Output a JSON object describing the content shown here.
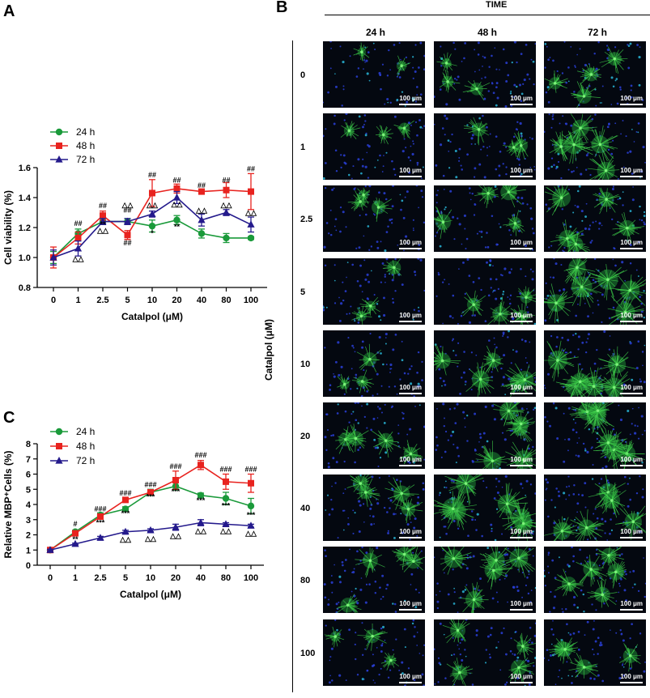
{
  "panels": {
    "a": "A",
    "b": "B",
    "c": "C"
  },
  "chart_data": [
    {
      "type": "line",
      "panel": "A",
      "xlabel": "Catalpol (μM)",
      "ylabel": "Cell viability (%)",
      "categories": [
        "0",
        "1",
        "2.5",
        "5",
        "10",
        "20",
        "40",
        "80",
        "100"
      ],
      "ylim": [
        0.8,
        1.6
      ],
      "yticks": [
        "0.8",
        "1.0",
        "1.2",
        "1.4",
        "1.6"
      ],
      "legend_position": "upper-left",
      "series": [
        {
          "name": "24 h",
          "color": "#1a9a3a",
          "marker": "circle",
          "values": [
            1.0,
            1.16,
            1.24,
            1.24,
            1.21,
            1.25,
            1.16,
            1.13,
            1.13
          ],
          "errors": [
            0.04,
            0.03,
            0.02,
            0.02,
            0.04,
            0.03,
            0.03,
            0.03,
            0.01
          ]
        },
        {
          "name": "48 h",
          "color": "#e8231f",
          "marker": "square",
          "values": [
            1.0,
            1.13,
            1.28,
            1.15,
            1.43,
            1.46,
            1.44,
            1.45,
            1.44
          ],
          "errors": [
            0.07,
            0.04,
            0.03,
            0.03,
            0.09,
            0.03,
            0.01,
            0.05,
            0.12
          ]
        },
        {
          "name": "72 h",
          "color": "#241a8c",
          "marker": "triangle",
          "values": [
            1.0,
            1.06,
            1.24,
            1.24,
            1.29,
            1.4,
            1.25,
            1.3,
            1.22
          ],
          "errors": [
            0.05,
            0.05,
            0.02,
            0.02,
            0.02,
            0.04,
            0.04,
            0.02,
            0.05
          ]
        }
      ],
      "annotations": [
        {
          "x": "1",
          "text": "##",
          "y": 1.21
        },
        {
          "x": "2.5",
          "text": "##",
          "y": 1.33
        },
        {
          "x": "2.5",
          "text": "**",
          "y": 1.205
        },
        {
          "x": "2.5",
          "text": "△△",
          "y": 1.165
        },
        {
          "x": "5",
          "text": "△△",
          "y": 1.335
        },
        {
          "x": "5",
          "text": "##",
          "y": 1.3
        },
        {
          "x": "5",
          "text": "##",
          "y": 1.08
        },
        {
          "x": "10",
          "text": "##",
          "y": 1.535
        },
        {
          "x": "10",
          "text": "△△",
          "y": 1.335
        },
        {
          "x": "10",
          "text": "*",
          "y": 1.145
        },
        {
          "x": "20",
          "text": "##",
          "y": 1.5
        },
        {
          "x": "20",
          "text": "△△",
          "y": 1.34
        },
        {
          "x": "20",
          "text": "**",
          "y": 1.19
        },
        {
          "x": "40",
          "text": "##",
          "y": 1.465
        },
        {
          "x": "40",
          "text": "△△",
          "y": 1.3
        },
        {
          "x": "80",
          "text": "##",
          "y": 1.5
        },
        {
          "x": "80",
          "text": "△△",
          "y": 1.335
        },
        {
          "x": "100",
          "text": "##",
          "y": 1.575
        },
        {
          "x": "100",
          "text": "△△",
          "y": 1.285
        },
        {
          "x": "1",
          "text": "△△",
          "y": 0.975
        }
      ]
    },
    {
      "type": "line",
      "panel": "C",
      "xlabel": "Catalpol (μM)",
      "ylabel": "Relative MBP⁺Cells (%)",
      "categories": [
        "0",
        "1",
        "2.5",
        "5",
        "10",
        "20",
        "40",
        "80",
        "100"
      ],
      "ylim": [
        0,
        8
      ],
      "yticks": [
        "0",
        "1",
        "2",
        "3",
        "4",
        "5",
        "6",
        "7",
        "8"
      ],
      "legend_position": "top",
      "series": [
        {
          "name": "24 h",
          "color": "#1a9a3a",
          "marker": "circle",
          "values": [
            1.0,
            2.2,
            3.3,
            3.7,
            4.8,
            5.2,
            4.6,
            4.4,
            3.9
          ],
          "errors": [
            0.1,
            0.1,
            0.15,
            0.15,
            0.2,
            0.25,
            0.15,
            0.4,
            0.5
          ]
        },
        {
          "name": "48 h",
          "color": "#e8231f",
          "marker": "square",
          "values": [
            1.0,
            2.1,
            3.2,
            4.3,
            4.8,
            5.6,
            6.6,
            5.5,
            5.4
          ],
          "errors": [
            0.1,
            0.1,
            0.15,
            0.15,
            0.15,
            0.6,
            0.3,
            0.5,
            0.6
          ]
        },
        {
          "name": "72 h",
          "color": "#241a8c",
          "marker": "triangle",
          "values": [
            1.0,
            1.4,
            1.8,
            2.2,
            2.3,
            2.5,
            2.8,
            2.7,
            2.6
          ],
          "errors": [
            0.05,
            0.05,
            0.1,
            0.1,
            0.1,
            0.2,
            0.2,
            0.1,
            0.1
          ]
        }
      ],
      "annotations": [
        {
          "x": "1",
          "text": "#",
          "y": 2.55
        },
        {
          "x": "1",
          "text": "**",
          "y": 1.55
        },
        {
          "x": "2.5",
          "text": "###",
          "y": 3.55
        },
        {
          "x": "2.5",
          "text": "***",
          "y": 2.65
        },
        {
          "x": "5",
          "text": "###",
          "y": 4.6
        },
        {
          "x": "5",
          "text": "***",
          "y": 3.25
        },
        {
          "x": "5",
          "text": "△△",
          "y": 1.55
        },
        {
          "x": "10",
          "text": "###",
          "y": 5.15
        },
        {
          "x": "10",
          "text": "***",
          "y": 4.35
        },
        {
          "x": "10",
          "text": "△△",
          "y": 1.6
        },
        {
          "x": "20",
          "text": "###",
          "y": 6.35
        },
        {
          "x": "20",
          "text": "***",
          "y": 4.7
        },
        {
          "x": "20",
          "text": "△△",
          "y": 1.8
        },
        {
          "x": "40",
          "text": "###",
          "y": 7.1
        },
        {
          "x": "40",
          "text": "***",
          "y": 4.1
        },
        {
          "x": "40",
          "text": "△△",
          "y": 2.1
        },
        {
          "x": "80",
          "text": "###",
          "y": 6.15
        },
        {
          "x": "80",
          "text": "***",
          "y": 3.75
        },
        {
          "x": "80",
          "text": "△△",
          "y": 2.1
        },
        {
          "x": "100",
          "text": "###",
          "y": 6.15
        },
        {
          "x": "100",
          "text": "***",
          "y": 3.15
        },
        {
          "x": "100",
          "text": "△△",
          "y": 1.95
        }
      ]
    }
  ],
  "micrographs": {
    "title": "TIME",
    "columns": [
      "24 h",
      "48 h",
      "72 h"
    ],
    "row_axis_label": "Catalpol (μM)",
    "rows": [
      "0",
      "1",
      "2.5",
      "5",
      "10",
      "20",
      "40",
      "80",
      "100"
    ],
    "scale_bar": "100 μm",
    "density": [
      [
        1,
        2,
        3
      ],
      [
        2,
        2,
        4
      ],
      [
        2,
        3,
        4
      ],
      [
        2,
        3,
        5
      ],
      [
        2,
        4,
        5
      ],
      [
        3,
        4,
        5
      ],
      [
        3,
        5,
        4
      ],
      [
        3,
        4,
        4
      ],
      [
        2,
        3,
        3
      ]
    ]
  }
}
